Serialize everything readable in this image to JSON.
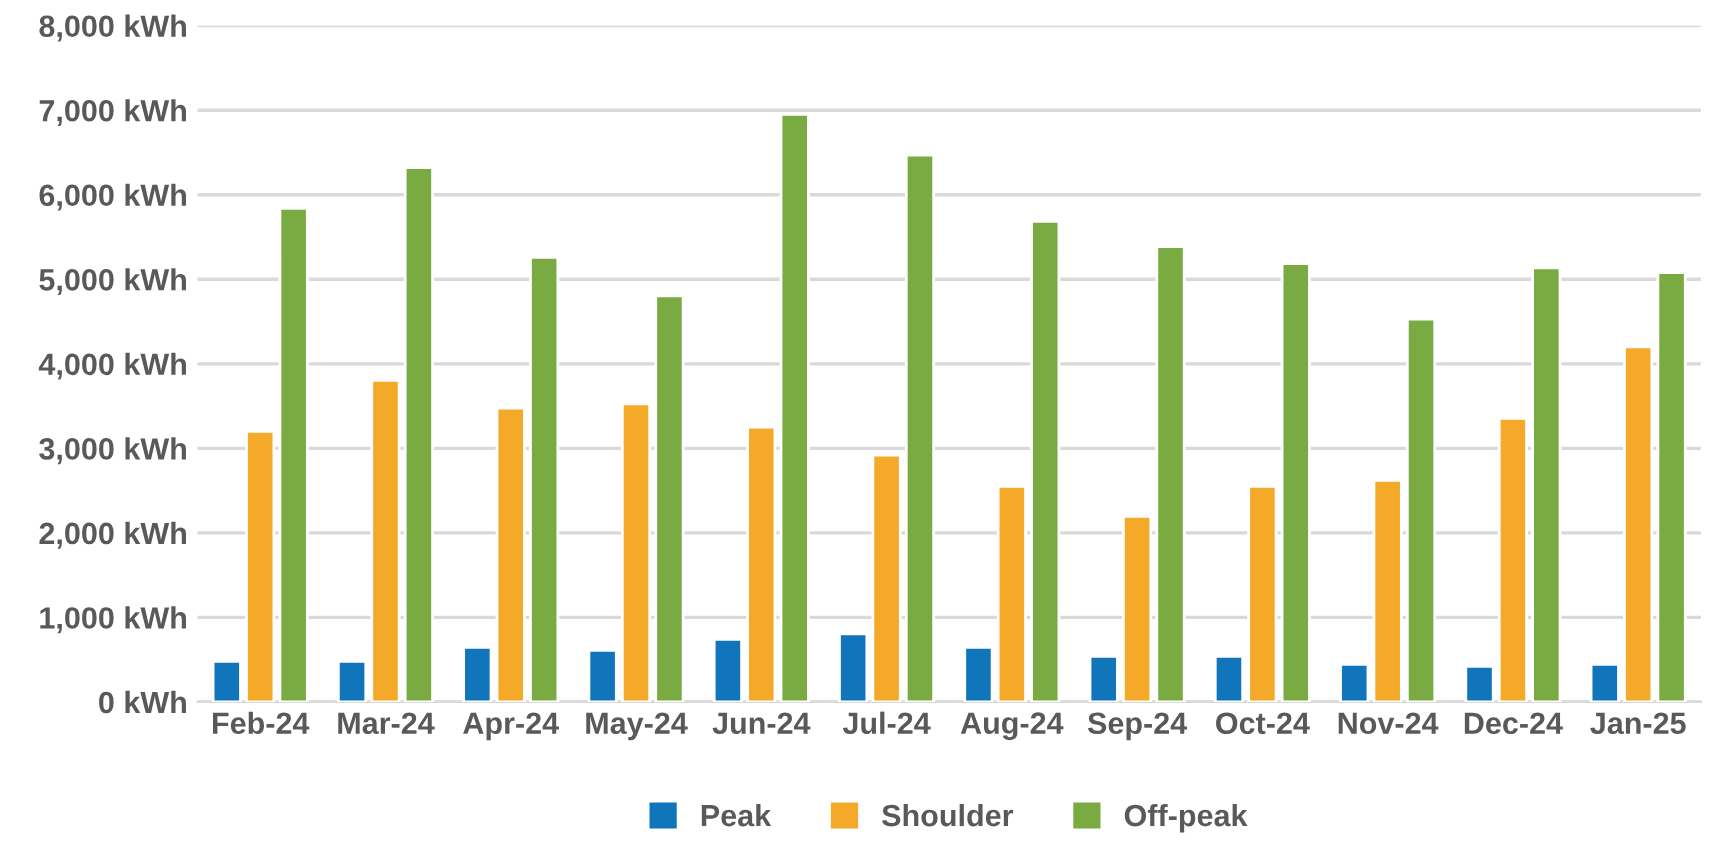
{
  "chart_data": {
    "type": "bar",
    "categories": [
      "Feb-24",
      "Mar-24",
      "Apr-24",
      "May-24",
      "Jun-24",
      "Jul-24",
      "Aug-24",
      "Sep-24",
      "Oct-24",
      "Nov-24",
      "Dec-24",
      "Jan-25"
    ],
    "series": [
      {
        "name": "Peak",
        "color": "#1175bc",
        "values": [
          480,
          480,
          645,
          610,
          740,
          805,
          645,
          540,
          540,
          445,
          420,
          445
        ]
      },
      {
        "name": "Shoulder",
        "color": "#f4a928",
        "values": [
          3200,
          3805,
          3475,
          3525,
          3250,
          2920,
          2550,
          2195,
          2550,
          2620,
          3355,
          4200
        ]
      },
      {
        "name": "Off-peak",
        "color": "#7aab42",
        "values": [
          5840,
          6320,
          5260,
          4805,
          6950,
          6470,
          5685,
          5385,
          5185,
          4530,
          5135,
          5080
        ]
      }
    ],
    "ylim": [
      0,
      8000
    ],
    "yticks": [
      {
        "value": 0,
        "label": "0 kWh"
      },
      {
        "value": 1000,
        "label": "1,000 kWh"
      },
      {
        "value": 2000,
        "label": "2,000 kWh"
      },
      {
        "value": 3000,
        "label": "3,000 kWh"
      },
      {
        "value": 4000,
        "label": "4,000 kWh"
      },
      {
        "value": 5000,
        "label": "5,000 kWh"
      },
      {
        "value": 6000,
        "label": "6,000 kWh"
      },
      {
        "value": 7000,
        "label": "7,000 kWh"
      },
      {
        "value": 8000,
        "label": "8,000 kWh"
      }
    ],
    "grid": "y",
    "legend": "bottom"
  }
}
